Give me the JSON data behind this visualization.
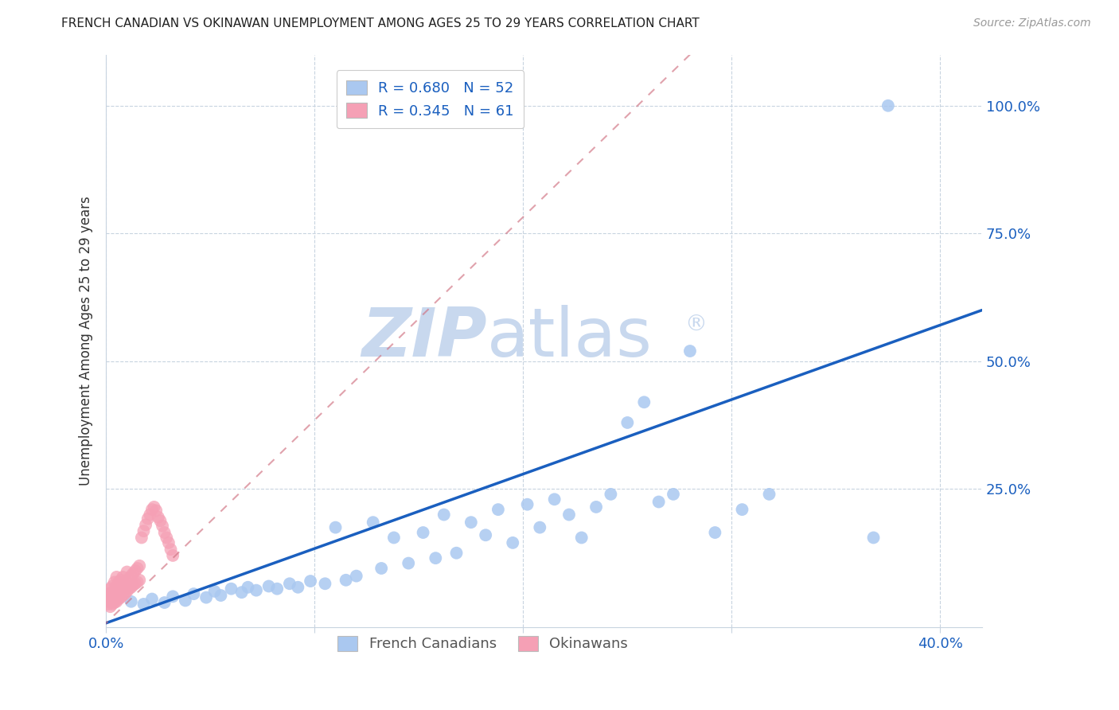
{
  "title": "FRENCH CANADIAN VS OKINAWAN UNEMPLOYMENT AMONG AGES 25 TO 29 YEARS CORRELATION CHART",
  "source": "Source: ZipAtlas.com",
  "ylabel": "Unemployment Among Ages 25 to 29 years",
  "xlim": [
    0.0,
    0.42
  ],
  "ylim": [
    -0.02,
    1.1
  ],
  "blue_R": 0.68,
  "blue_N": 52,
  "pink_R": 0.345,
  "pink_N": 61,
  "blue_color": "#aac8f0",
  "pink_color": "#f5a0b5",
  "blue_line_color": "#1a5fbf",
  "pink_line_color": "#d07080",
  "watermark_zip_color": "#c8d8ee",
  "watermark_atlas_color": "#c8d8ee",
  "legend_blue_label": "French Canadians",
  "legend_pink_label": "Okinawans",
  "grid_color": "#c8d4e0",
  "background_color": "#ffffff",
  "blue_x": [
    0.012,
    0.018,
    0.022,
    0.028,
    0.032,
    0.038,
    0.042,
    0.048,
    0.052,
    0.055,
    0.06,
    0.065,
    0.068,
    0.072,
    0.078,
    0.082,
    0.088,
    0.092,
    0.098,
    0.105,
    0.11,
    0.115,
    0.12,
    0.128,
    0.132,
    0.138,
    0.145,
    0.152,
    0.158,
    0.162,
    0.168,
    0.175,
    0.182,
    0.188,
    0.195,
    0.202,
    0.208,
    0.215,
    0.222,
    0.228,
    0.235,
    0.242,
    0.25,
    0.258,
    0.265,
    0.272,
    0.28,
    0.292,
    0.305,
    0.318,
    0.368,
    0.375
  ],
  "blue_y": [
    0.03,
    0.025,
    0.035,
    0.028,
    0.04,
    0.032,
    0.045,
    0.038,
    0.05,
    0.042,
    0.055,
    0.048,
    0.058,
    0.052,
    0.06,
    0.055,
    0.065,
    0.058,
    0.07,
    0.065,
    0.175,
    0.072,
    0.08,
    0.185,
    0.095,
    0.155,
    0.105,
    0.165,
    0.115,
    0.2,
    0.125,
    0.185,
    0.16,
    0.21,
    0.145,
    0.22,
    0.175,
    0.23,
    0.2,
    0.155,
    0.215,
    0.24,
    0.38,
    0.42,
    0.225,
    0.24,
    0.52,
    0.165,
    0.21,
    0.24,
    0.155,
    1.0
  ],
  "pink_x": [
    0.001,
    0.001,
    0.001,
    0.002,
    0.002,
    0.002,
    0.002,
    0.003,
    0.003,
    0.003,
    0.003,
    0.004,
    0.004,
    0.004,
    0.004,
    0.005,
    0.005,
    0.005,
    0.005,
    0.006,
    0.006,
    0.006,
    0.007,
    0.007,
    0.007,
    0.008,
    0.008,
    0.008,
    0.009,
    0.009,
    0.01,
    0.01,
    0.01,
    0.011,
    0.011,
    0.012,
    0.012,
    0.013,
    0.013,
    0.014,
    0.014,
    0.015,
    0.015,
    0.016,
    0.016,
    0.017,
    0.018,
    0.019,
    0.02,
    0.021,
    0.022,
    0.023,
    0.024,
    0.025,
    0.026,
    0.027,
    0.028,
    0.029,
    0.03,
    0.031,
    0.032
  ],
  "pink_y": [
    0.025,
    0.035,
    0.045,
    0.02,
    0.03,
    0.04,
    0.055,
    0.025,
    0.035,
    0.048,
    0.06,
    0.028,
    0.04,
    0.052,
    0.068,
    0.03,
    0.045,
    0.06,
    0.078,
    0.035,
    0.05,
    0.068,
    0.038,
    0.055,
    0.072,
    0.042,
    0.058,
    0.078,
    0.045,
    0.062,
    0.05,
    0.068,
    0.088,
    0.055,
    0.075,
    0.058,
    0.08,
    0.062,
    0.085,
    0.065,
    0.09,
    0.068,
    0.095,
    0.072,
    0.1,
    0.155,
    0.168,
    0.18,
    0.192,
    0.2,
    0.21,
    0.215,
    0.208,
    0.195,
    0.188,
    0.178,
    0.165,
    0.155,
    0.145,
    0.132,
    0.12
  ],
  "blue_line": [
    [
      0.0,
      0.42
    ],
    [
      -0.01,
      0.6
    ]
  ],
  "pink_line": [
    [
      -0.005,
      0.3
    ],
    [
      -0.04,
      1.1
    ]
  ]
}
